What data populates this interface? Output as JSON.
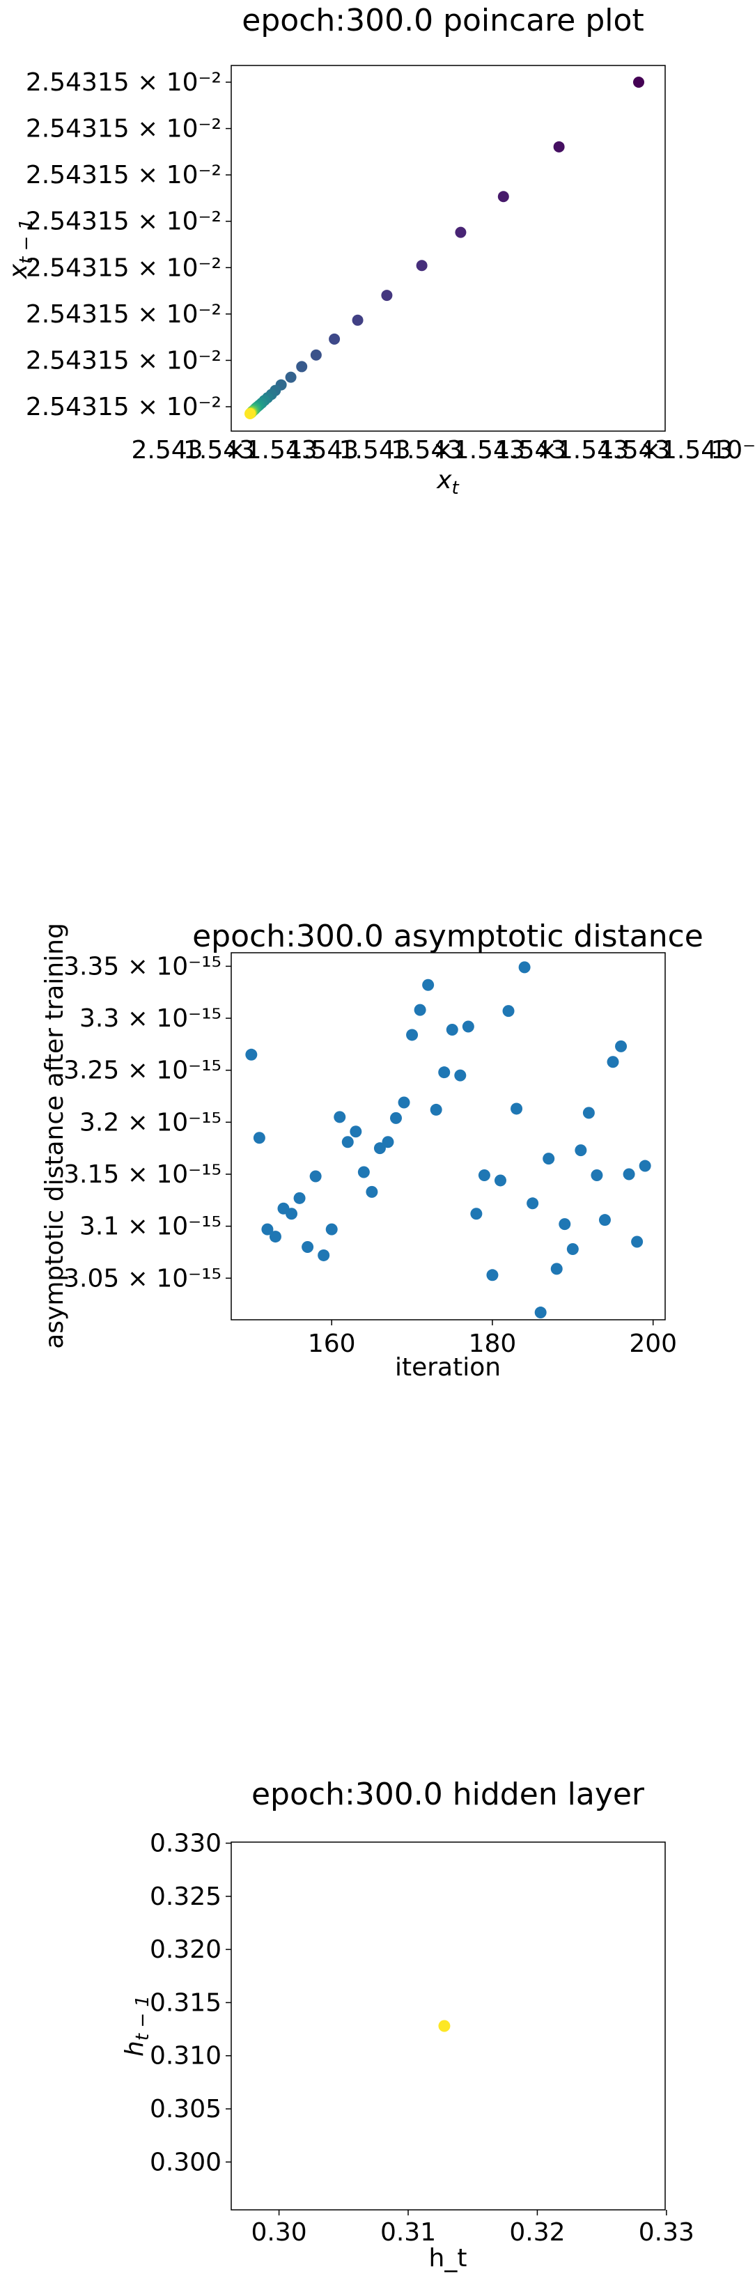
{
  "chart_data": [
    {
      "type": "scatter",
      "title": "epoch:300.0 poincare plot",
      "xlabel": "x_t",
      "ylabel": "x_{t-1}",
      "colormap": "viridis",
      "yticks": [
        "2.54315 × 10⁻²",
        "2.54315 × 10⁻²",
        "2.54315 × 10⁻²",
        "2.54315 × 10⁻²",
        "2.54315 × 10⁻²",
        "2.54315 × 10⁻²",
        "2.54315 × 10⁻²",
        "2.54315 × 10⁻²"
      ],
      "xticks": [
        "2.543",
        "1.543",
        "×1.543",
        "1.543",
        "1.543",
        "1.543",
        "×1.543",
        "1.543",
        "×1.543",
        "1.543",
        "×1.543",
        "10⁻²"
      ],
      "points": [
        {
          "x": 1.0,
          "y": 1.0,
          "c": 0.0
        },
        {
          "x": 0.795,
          "y": 0.805,
          "c": 0.04
        },
        {
          "x": 0.652,
          "y": 0.655,
          "c": 0.07
        },
        {
          "x": 0.542,
          "y": 0.547,
          "c": 0.1
        },
        {
          "x": 0.442,
          "y": 0.447,
          "c": 0.13
        },
        {
          "x": 0.352,
          "y": 0.357,
          "c": 0.16
        },
        {
          "x": 0.277,
          "y": 0.282,
          "c": 0.19
        },
        {
          "x": 0.217,
          "y": 0.225,
          "c": 0.22
        },
        {
          "x": 0.17,
          "y": 0.177,
          "c": 0.25
        },
        {
          "x": 0.133,
          "y": 0.142,
          "c": 0.28
        },
        {
          "x": 0.105,
          "y": 0.11,
          "c": 0.31
        },
        {
          "x": 0.08,
          "y": 0.087,
          "c": 0.34
        },
        {
          "x": 0.065,
          "y": 0.07,
          "c": 0.37
        },
        {
          "x": 0.055,
          "y": 0.058,
          "c": 0.4
        },
        {
          "x": 0.045,
          "y": 0.048,
          "c": 0.43
        },
        {
          "x": 0.037,
          "y": 0.04,
          "c": 0.47
        },
        {
          "x": 0.03,
          "y": 0.032,
          "c": 0.5
        },
        {
          "x": 0.024,
          "y": 0.026,
          "c": 0.53
        },
        {
          "x": 0.019,
          "y": 0.021,
          "c": 0.56
        },
        {
          "x": 0.015,
          "y": 0.017,
          "c": 0.6
        },
        {
          "x": 0.012,
          "y": 0.013,
          "c": 0.64
        },
        {
          "x": 0.009,
          "y": 0.01,
          "c": 0.68
        },
        {
          "x": 0.007,
          "y": 0.008,
          "c": 0.72
        },
        {
          "x": 0.005,
          "y": 0.006,
          "c": 0.76
        },
        {
          "x": 0.004,
          "y": 0.004,
          "c": 0.8
        },
        {
          "x": 0.003,
          "y": 0.003,
          "c": 0.84
        },
        {
          "x": 0.002,
          "y": 0.002,
          "c": 0.88
        },
        {
          "x": 0.001,
          "y": 0.001,
          "c": 0.92
        },
        {
          "x": 0.0005,
          "y": 0.0005,
          "c": 0.96
        },
        {
          "x": 0.0,
          "y": 0.0,
          "c": 1.0
        }
      ]
    },
    {
      "type": "scatter",
      "title": "epoch:300.0 asymptotic distance",
      "xlabel": "iteration",
      "ylabel": "asymptotic distance after training",
      "color": "#1f77b4",
      "xlim": [
        147.5,
        201.5
      ],
      "ylim": [
        3.01,
        3.363
      ],
      "y_unit": "10⁻¹⁵",
      "xticks": [
        160,
        180,
        200
      ],
      "yticks": [
        3.05,
        3.1,
        3.15,
        3.2,
        3.25,
        3.3,
        3.35
      ],
      "ytick_labels": [
        "3.05 × 10⁻¹⁵",
        "3.1 × 10⁻¹⁵",
        "3.15 × 10⁻¹⁵",
        "3.2 × 10⁻¹⁵",
        "3.25 × 10⁻¹⁵",
        "3.3 × 10⁻¹⁵",
        "3.35 × 10⁻¹⁵"
      ],
      "x": [
        150,
        151,
        152,
        153,
        154,
        155,
        156,
        157,
        158,
        159,
        160,
        161,
        162,
        163,
        164,
        165,
        166,
        167,
        168,
        169,
        170,
        171,
        172,
        173,
        174,
        175,
        176,
        177,
        178,
        179,
        180,
        181,
        182,
        183,
        184,
        185,
        186,
        187,
        188,
        189,
        190,
        191,
        192,
        193,
        194,
        195,
        196,
        197,
        198,
        199
      ],
      "y": [
        3.265,
        3.185,
        3.097,
        3.09,
        3.117,
        3.112,
        3.127,
        3.08,
        3.148,
        3.072,
        3.097,
        3.205,
        3.181,
        3.191,
        3.152,
        3.133,
        3.175,
        3.181,
        3.204,
        3.219,
        3.284,
        3.308,
        3.332,
        3.212,
        3.248,
        3.289,
        3.245,
        3.292,
        3.112,
        3.149,
        3.053,
        3.144,
        3.307,
        3.213,
        3.349,
        3.122,
        3.017,
        3.165,
        3.059,
        3.102,
        3.078,
        3.173,
        3.209,
        3.149,
        3.106,
        3.258,
        3.273,
        3.15,
        3.085,
        3.158
      ]
    },
    {
      "type": "scatter",
      "title": "epoch:300.0 hidden layer",
      "xlabel": "h_t",
      "ylabel": "h_{t-1}",
      "color": "#fde725",
      "xlim": [
        0.2963,
        0.3299
      ],
      "ylim": [
        0.2955,
        0.3301
      ],
      "xticks": [
        0.3,
        0.31,
        0.32,
        0.33
      ],
      "xtick_labels": [
        "0.30",
        "0.31",
        "0.32",
        "0.33"
      ],
      "yticks": [
        0.3,
        0.305,
        0.31,
        0.315,
        0.32,
        0.325,
        0.33
      ],
      "ytick_labels": [
        "0.300",
        "0.305",
        "0.310",
        "0.315",
        "0.320",
        "0.325",
        "0.330"
      ],
      "points": [
        {
          "x": 0.3128,
          "y": 0.3128
        }
      ]
    }
  ]
}
